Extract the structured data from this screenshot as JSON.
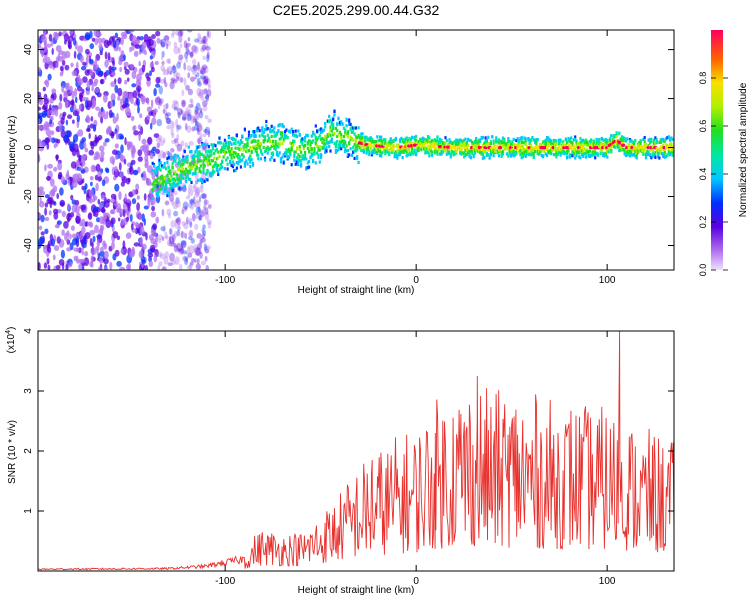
{
  "title": "C2E5.2025.299.00.44.G32",
  "chart_data": [
    {
      "type": "heatmap",
      "xlabel": "Height of straight line (km)",
      "ylabel": "Frequency (Hz)",
      "xlim": [
        -198,
        135
      ],
      "ylim": [
        -50,
        48
      ],
      "xticks": [
        -100,
        0,
        100
      ],
      "xtick_labels": [
        "-100",
        "0",
        "100"
      ],
      "yticks": [
        -40,
        -20,
        0,
        20,
        40
      ],
      "ytick_labels": [
        "-40",
        "-20",
        "0",
        "20",
        "40"
      ],
      "grid": false,
      "colorbar": {
        "label": "Normalized spectral amplitude",
        "range": [
          0,
          1
        ],
        "ticks": [
          0.0,
          0.2,
          0.4,
          0.6,
          0.8
        ],
        "tick_labels": [
          "0.0",
          "0.2",
          "0.4",
          "0.6",
          "0.8"
        ],
        "placement": "right"
      },
      "ridge": {
        "x": [
          -135,
          -120,
          -110,
          -100,
          -90,
          -80,
          -70,
          -60,
          -50,
          -45,
          -40,
          -35,
          -30,
          -25,
          -10,
          0,
          20,
          50,
          80,
          100,
          105,
          110,
          135
        ],
        "y": [
          -14,
          -8,
          -6,
          -3,
          -1,
          2,
          2,
          -1,
          1,
          7,
          5,
          4,
          2,
          1,
          0,
          1,
          0,
          0,
          0,
          0,
          3,
          0,
          0
        ]
      },
      "noise_region": {
        "x_from": -198,
        "x_to": -108
      }
    },
    {
      "type": "line",
      "xlabel": "Height of straight line (km)",
      "ylabel": "SNR (10 * v/v)",
      "y_scale_label": "(x10",
      "y_scale_exponent": "4",
      "y_scale_close": ")",
      "xlim": [
        -198,
        135
      ],
      "ylim": [
        0,
        40000
      ],
      "xticks": [
        -100,
        0,
        100
      ],
      "xtick_labels": [
        "-100",
        "0",
        "100"
      ],
      "yticks": [
        10000,
        20000,
        30000,
        40000
      ],
      "ytick_labels": [
        "1",
        "2",
        "3",
        "4"
      ],
      "grid": false,
      "series": [
        {
          "color": "#e8302c",
          "envelope_x": [
            -198,
            -130,
            -110,
            -90,
            -85,
            -80,
            -70,
            -60,
            -50,
            -40,
            -30,
            -20,
            -10,
            0,
            10,
            20,
            30,
            40,
            50,
            60,
            70,
            80,
            90,
            100,
            105,
            107,
            110,
            120,
            135
          ],
          "envelope_y": [
            300,
            400,
            800,
            2000,
            5000,
            6000,
            5500,
            5500,
            8000,
            11000,
            15000,
            17000,
            19000,
            20000,
            24000,
            26000,
            27000,
            25000,
            26000,
            25000,
            24000,
            24000,
            23000,
            23000,
            22000,
            40000,
            21000,
            20000,
            18000
          ],
          "peaks_x": [
            32,
            106.5,
            -23,
            10
          ],
          "peaks_y": [
            32500,
            40000,
            18500,
            23000
          ]
        }
      ]
    }
  ]
}
